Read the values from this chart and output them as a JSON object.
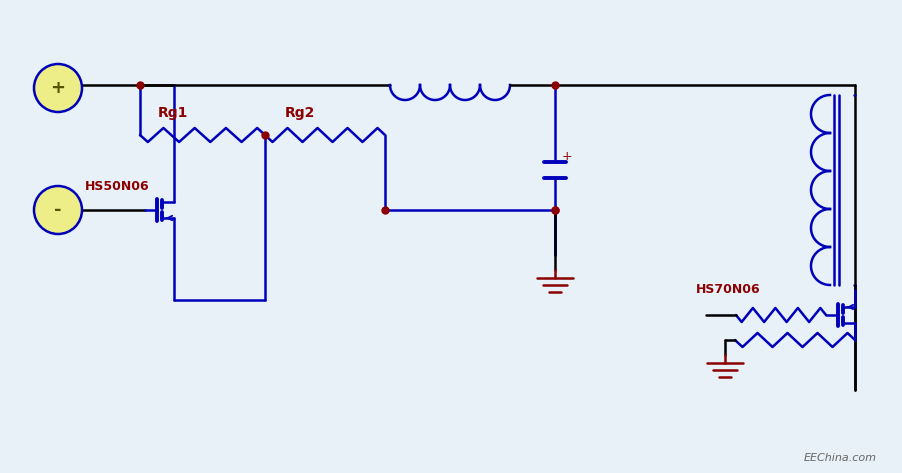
{
  "bg_color": "#e8f0f8",
  "line_blue": "#0000bb",
  "line_black": "#000000",
  "dot_color": "#8b0000",
  "text_color": "#8b0000",
  "label_hs50": "HS50N06",
  "label_hs70": "HS70N06",
  "label_rg1": "Rg1",
  "label_rg2": "Rg2",
  "label_watermark": "EEChina.com",
  "fig_width": 9.03,
  "fig_height": 4.73,
  "dpi": 100
}
